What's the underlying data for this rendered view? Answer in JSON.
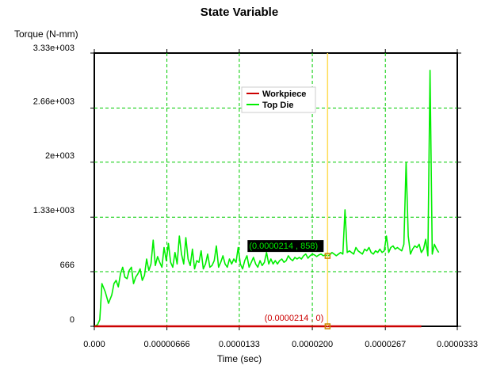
{
  "chart_data": {
    "type": "line",
    "title": "State Variable",
    "xlabel": "Time (sec)",
    "ylabel": "Torque (N-mm)",
    "xlim": [
      0,
      3.33e-05
    ],
    "ylim": [
      0,
      3330
    ],
    "x_ticks": [
      {
        "value": 0,
        "label": "0.000"
      },
      {
        "value": 6.66e-06,
        "label": "0.00000666"
      },
      {
        "value": 1.33e-05,
        "label": "0.0000133"
      },
      {
        "value": 2e-05,
        "label": "0.0000200"
      },
      {
        "value": 2.67e-05,
        "label": "0.0000267"
      },
      {
        "value": 3.33e-05,
        "label": "0.0000333"
      }
    ],
    "y_ticks": [
      {
        "value": 0,
        "label": "0"
      },
      {
        "value": 666,
        "label": "666"
      },
      {
        "value": 1330,
        "label": "1.33e+003"
      },
      {
        "value": 2000,
        "label": "2e+003"
      },
      {
        "value": 2660,
        "label": "2.66e+003"
      },
      {
        "value": 3330,
        "label": "3.33e+003"
      }
    ],
    "grid": true,
    "grid_color": "#00cc00",
    "legend_position": "top-center",
    "series": [
      {
        "name": "Workpiece",
        "color": "#cc0000",
        "x": [
          0,
          1e-05,
          2e-05,
          3e-05
        ],
        "y": [
          0,
          0,
          0,
          0
        ]
      },
      {
        "name": "Top Die",
        "color": "#00ee00",
        "x": [
          0,
          3e-07,
          5e-07,
          7e-07,
          1e-06,
          1.3e-06,
          1.6e-06,
          1.8e-06,
          2e-06,
          2.2e-06,
          2.4e-06,
          2.6e-06,
          2.8e-06,
          3e-06,
          3.2e-06,
          3.4e-06,
          3.6e-06,
          3.8e-06,
          4e-06,
          4.2e-06,
          4.4e-06,
          4.6e-06,
          4.8e-06,
          5e-06,
          5.2e-06,
          5.4e-06,
          5.6e-06,
          5.8e-06,
          6e-06,
          6.2e-06,
          6.4e-06,
          6.6e-06,
          6.8e-06,
          7e-06,
          7.2e-06,
          7.4e-06,
          7.6e-06,
          7.8e-06,
          8e-06,
          8.2e-06,
          8.4e-06,
          8.6e-06,
          8.8e-06,
          9e-06,
          9.2e-06,
          9.4e-06,
          9.6e-06,
          9.8e-06,
          1e-05,
          1.02e-05,
          1.04e-05,
          1.06e-05,
          1.08e-05,
          1.1e-05,
          1.12e-05,
          1.14e-05,
          1.16e-05,
          1.18e-05,
          1.2e-05,
          1.22e-05,
          1.24e-05,
          1.26e-05,
          1.28e-05,
          1.3e-05,
          1.32e-05,
          1.34e-05,
          1.36e-05,
          1.38e-05,
          1.4e-05,
          1.42e-05,
          1.44e-05,
          1.46e-05,
          1.48e-05,
          1.5e-05,
          1.52e-05,
          1.54e-05,
          1.56e-05,
          1.58e-05,
          1.6e-05,
          1.62e-05,
          1.64e-05,
          1.66e-05,
          1.68e-05,
          1.7e-05,
          1.72e-05,
          1.74e-05,
          1.76e-05,
          1.78e-05,
          1.8e-05,
          1.82e-05,
          1.84e-05,
          1.86e-05,
          1.88e-05,
          1.9e-05,
          1.92e-05,
          1.94e-05,
          1.96e-05,
          1.98e-05,
          2e-05,
          2.02e-05,
          2.04e-05,
          2.06e-05,
          2.08e-05,
          2.1e-05,
          2.12e-05,
          2.14e-05,
          2.16e-05,
          2.18e-05,
          2.2e-05,
          2.22e-05,
          2.24e-05,
          2.26e-05,
          2.28e-05,
          2.3e-05,
          2.32e-05,
          2.34e-05,
          2.36e-05,
          2.38e-05,
          2.4e-05,
          2.42e-05,
          2.44e-05,
          2.46e-05,
          2.48e-05,
          2.5e-05,
          2.52e-05,
          2.54e-05,
          2.56e-05,
          2.58e-05,
          2.6e-05,
          2.62e-05,
          2.64e-05,
          2.66e-05,
          2.68e-05,
          2.7e-05,
          2.72e-05,
          2.74e-05,
          2.76e-05,
          2.78e-05,
          2.8e-05,
          2.82e-05,
          2.84e-05,
          2.86e-05,
          2.88e-05,
          2.9e-05,
          2.92e-05,
          2.94e-05,
          2.96e-05,
          2.98e-05,
          3e-05,
          3.02e-05,
          3.04e-05,
          3.06e-05,
          3.08e-05,
          3.1e-05,
          3.12e-05,
          3.14e-05,
          3.16e-05
        ],
        "y": [
          0,
          20,
          80,
          520,
          420,
          280,
          380,
          520,
          560,
          480,
          640,
          720,
          600,
          580,
          680,
          720,
          520,
          600,
          640,
          700,
          560,
          620,
          820,
          680,
          760,
          1050,
          740,
          850,
          780,
          720,
          960,
          800,
          1010,
          780,
          720,
          900,
          760,
          1100,
          880,
          760,
          1080,
          820,
          740,
          940,
          700,
          800,
          780,
          920,
          700,
          760,
          880,
          720,
          740,
          800,
          980,
          720,
          780,
          860,
          760,
          720,
          820,
          760,
          820,
          780,
          960,
          760,
          700,
          800,
          860,
          720,
          780,
          840,
          760,
          720,
          800,
          740,
          780,
          900,
          760,
          820,
          760,
          800,
          760,
          800,
          820,
          780,
          800,
          860,
          820,
          800,
          840,
          820,
          840,
          820,
          860,
          880,
          830,
          860,
          880,
          870,
          850,
          870,
          880,
          860,
          870,
          858,
          870,
          900,
          880,
          860,
          880,
          900,
          880,
          1420,
          900,
          920,
          900,
          880,
          960,
          920,
          900,
          880,
          940,
          920,
          960,
          900,
          880,
          920,
          900,
          940,
          900,
          920,
          1100,
          900,
          960,
          980,
          940,
          960,
          940,
          920,
          1000,
          2000,
          1100,
          880,
          940,
          980,
          960,
          1000,
          900,
          940,
          1060,
          860,
          3120,
          880,
          1000,
          940,
          900
        ]
      }
    ],
    "cursor": {
      "x": 2.14e-05,
      "color": "#ffdd55",
      "labels": [
        {
          "text": "(0.0000214 , 858)",
          "series": "Top Die",
          "y": 858
        },
        {
          "text": "(0.0000214 , 0)",
          "series": "Workpiece",
          "y": 0
        }
      ]
    }
  }
}
